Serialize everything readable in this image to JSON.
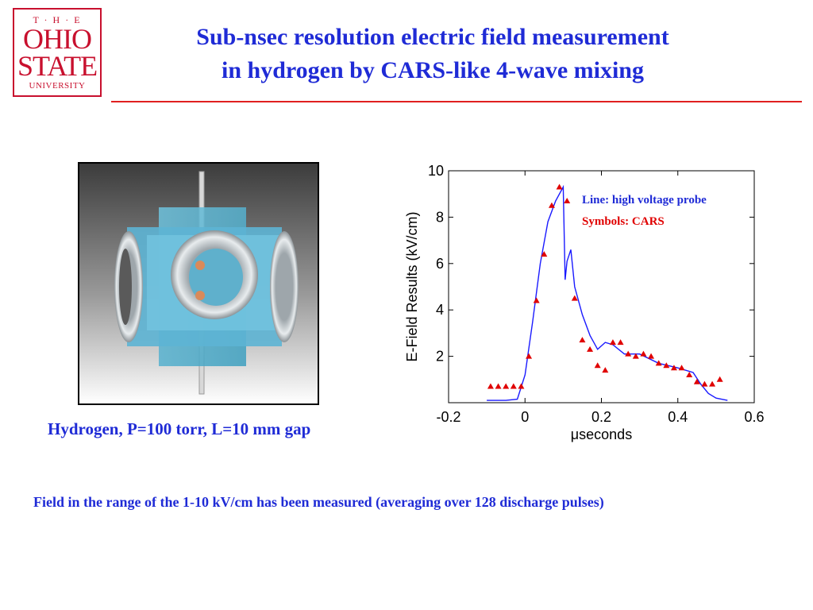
{
  "logo": {
    "the": "T · H · E",
    "ohio": "OHIO",
    "state": "STATE",
    "university": "UNIVERSITY"
  },
  "title": {
    "line1": "Sub-nsec resolution electric field measurement",
    "line2": "in hydrogen by CARS-like 4-wave mixing"
  },
  "photo": {
    "caption": "Hydrogen, P=100 torr, L=10 mm gap"
  },
  "footer": {
    "text": "Field in the range of the 1-10 kV/cm has been measured (averaging over 128 discharge pulses)"
  },
  "colors": {
    "title": "#1f2bd6",
    "accent": "#e02020",
    "line": "#1a1aff",
    "symbols": "#e00000"
  },
  "chart_data": {
    "type": "line",
    "xlabel": "μseconds",
    "ylabel": "E-Field Results (kV/cm)",
    "xlim": [
      -0.2,
      0.6
    ],
    "ylim": [
      0,
      10
    ],
    "xticks": [
      "-0.2",
      "0",
      "0.2",
      "0.4",
      "0.6"
    ],
    "yticks": [
      "2",
      "4",
      "6",
      "8",
      "10"
    ],
    "legend": {
      "line": "Line: high voltage probe",
      "symbols": "Symbols: CARS"
    },
    "series": [
      {
        "name": "high voltage probe",
        "style": "line",
        "x": [
          -0.1,
          -0.05,
          -0.02,
          0.0,
          0.02,
          0.04,
          0.06,
          0.08,
          0.1,
          0.105,
          0.11,
          0.12,
          0.13,
          0.15,
          0.17,
          0.19,
          0.21,
          0.23,
          0.26,
          0.3,
          0.35,
          0.4,
          0.44,
          0.46,
          0.48,
          0.5,
          0.53
        ],
        "y": [
          0.1,
          0.1,
          0.15,
          1.2,
          3.5,
          6.0,
          7.8,
          8.7,
          9.3,
          5.3,
          6.1,
          6.6,
          5.0,
          3.8,
          2.9,
          2.3,
          2.6,
          2.5,
          2.1,
          2.1,
          1.7,
          1.5,
          1.3,
          0.8,
          0.4,
          0.2,
          0.1
        ]
      },
      {
        "name": "CARS",
        "style": "triangles",
        "x": [
          -0.09,
          -0.07,
          -0.05,
          -0.03,
          -0.01,
          0.01,
          0.03,
          0.05,
          0.07,
          0.09,
          0.11,
          0.13,
          0.15,
          0.17,
          0.19,
          0.21,
          0.23,
          0.25,
          0.27,
          0.29,
          0.31,
          0.33,
          0.35,
          0.37,
          0.39,
          0.41,
          0.43,
          0.45,
          0.47,
          0.49,
          0.51
        ],
        "y": [
          0.7,
          0.7,
          0.7,
          0.7,
          0.7,
          2.0,
          4.4,
          6.4,
          8.5,
          9.3,
          8.7,
          4.5,
          2.7,
          2.3,
          1.6,
          1.4,
          2.6,
          2.6,
          2.1,
          2.0,
          2.1,
          2.0,
          1.7,
          1.6,
          1.5,
          1.5,
          1.2,
          0.9,
          0.8,
          0.8,
          1.0
        ]
      }
    ]
  }
}
